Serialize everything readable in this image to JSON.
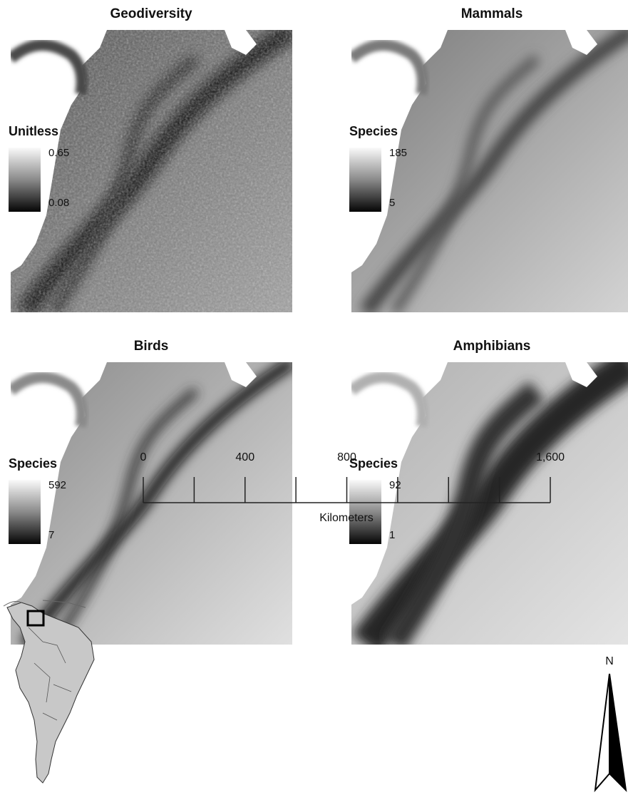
{
  "panels": [
    {
      "title": "Geodiversity",
      "legend": {
        "title": "Unitless",
        "max": 0.65,
        "min": 0.08
      }
    },
    {
      "title": "Mammals",
      "legend": {
        "title": "Species",
        "max": 185,
        "min": 5
      }
    },
    {
      "title": "Birds",
      "legend": {
        "title": "Species",
        "max": 592,
        "min": 7
      }
    },
    {
      "title": "Amphibians",
      "legend": {
        "title": "Species",
        "max": 92,
        "min": 1
      }
    }
  ],
  "scale_bar": {
    "ticks": [
      0,
      200,
      400,
      600,
      800,
      1000,
      1200,
      1400,
      1600
    ],
    "labels": [
      0,
      400,
      800,
      {
        "value": 1600,
        "label": "1,600"
      }
    ],
    "unit": "Kilometers"
  },
  "north_arrow": {
    "label": "N"
  }
}
